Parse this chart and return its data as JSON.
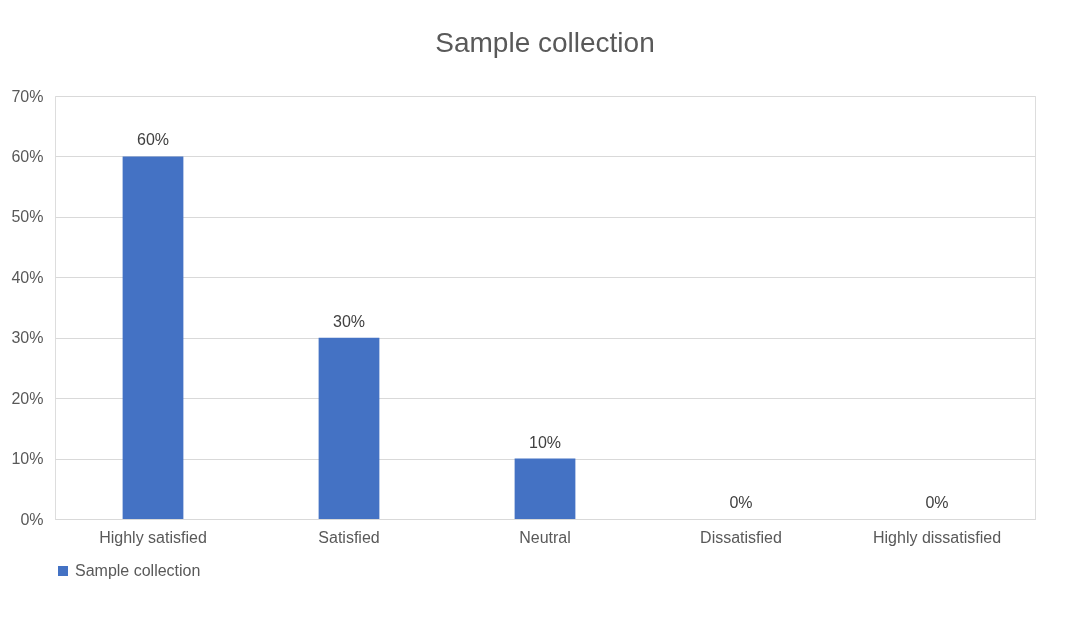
{
  "chart_data": {
    "type": "bar",
    "title": "Sample collection",
    "categories": [
      "Highly satisfied",
      "Satisfied",
      "Neutral",
      "Dissatisfied",
      "Highly dissatisfied"
    ],
    "series": [
      {
        "name": "Sample collection",
        "color": "#4472c4",
        "values": [
          60,
          30,
          10,
          0,
          0
        ],
        "value_labels": [
          "60%",
          "30%",
          "10%",
          "0%",
          "0%"
        ]
      }
    ],
    "ylim": [
      0,
      70
    ],
    "yticks": [
      {
        "value": 0,
        "label": "0%"
      },
      {
        "value": 10,
        "label": "10%"
      },
      {
        "value": 20,
        "label": "20%"
      },
      {
        "value": 30,
        "label": "30%"
      },
      {
        "value": 40,
        "label": "40%"
      },
      {
        "value": 50,
        "label": "50%"
      },
      {
        "value": 60,
        "label": "60%"
      },
      {
        "value": 70,
        "label": "70%"
      }
    ],
    "grid": "y",
    "legend": "bottom"
  }
}
